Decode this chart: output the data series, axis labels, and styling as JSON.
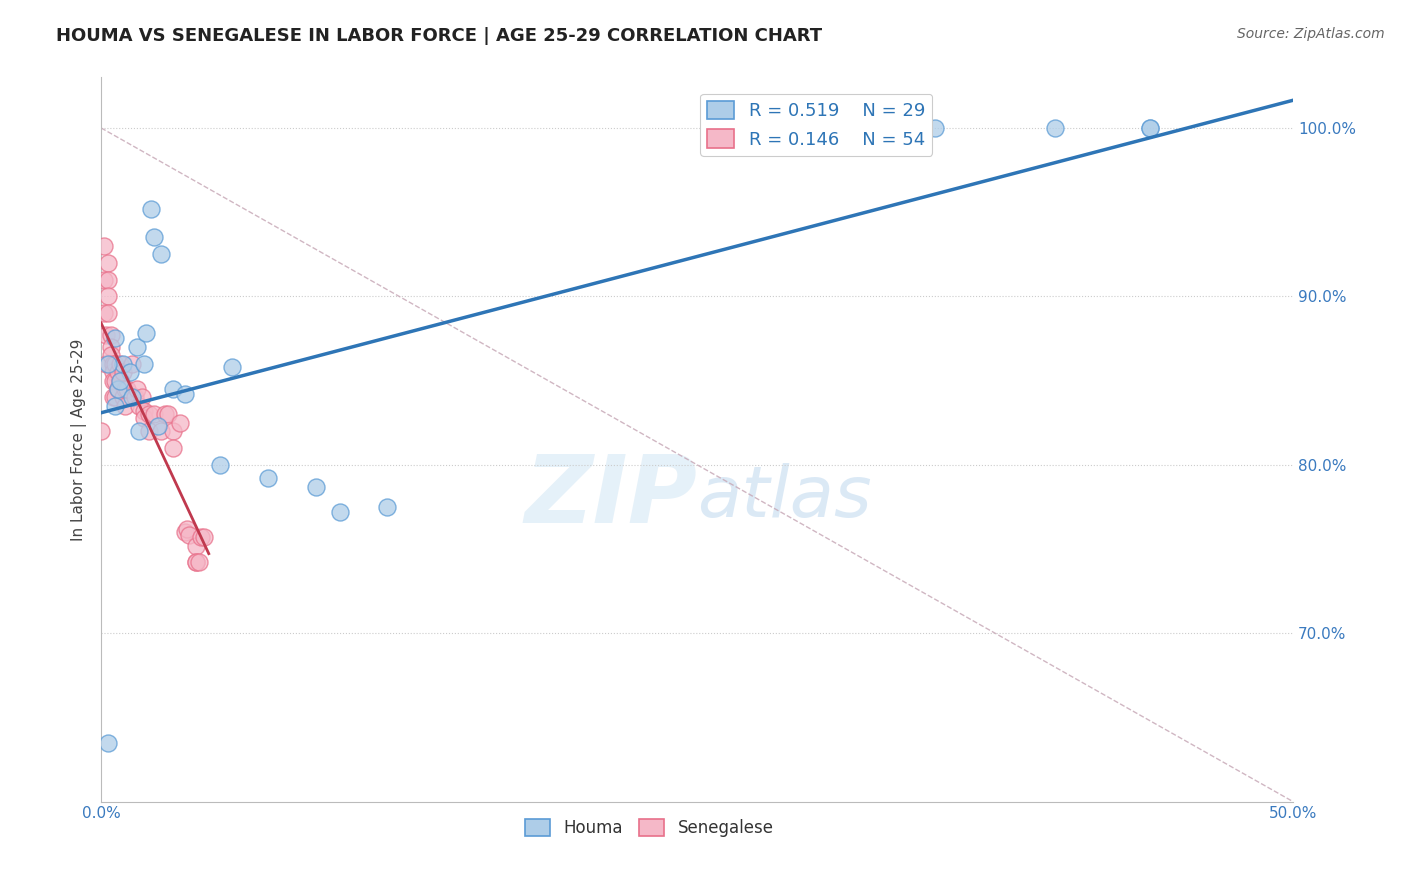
{
  "title": "HOUMA VS SENEGALESE IN LABOR FORCE | AGE 25-29 CORRELATION CHART",
  "source": "Source: ZipAtlas.com",
  "ylabel": "In Labor Force | Age 25-29",
  "xlim": [
    0.0,
    0.5
  ],
  "ylim": [
    0.6,
    1.03
  ],
  "xtick_labels": [
    "0.0%",
    "",
    "",
    "",
    "",
    "50.0%"
  ],
  "xtick_values": [
    0.0,
    0.1,
    0.2,
    0.3,
    0.4,
    0.5
  ],
  "ytick_labels": [
    "70.0%",
    "80.0%",
    "90.0%",
    "100.0%"
  ],
  "ytick_values": [
    0.7,
    0.8,
    0.9,
    1.0
  ],
  "legend_R_houma": "0.519",
  "legend_N_houma": "29",
  "legend_R_senegalese": "0.146",
  "legend_N_senegalese": "54",
  "houma_color": "#aecde8",
  "senegalese_color": "#f5b8c8",
  "houma_edge_color": "#5b9bd5",
  "senegalese_edge_color": "#e8708a",
  "houma_line_color": "#2e75b6",
  "senegalese_line_color": "#c0394e",
  "diagonal_color": "#c8aab8",
  "watermark_zip": "ZIP",
  "watermark_atlas": "atlas",
  "houma_scatter_x": [
    0.003,
    0.021,
    0.022,
    0.025,
    0.006,
    0.006,
    0.007,
    0.009,
    0.012,
    0.015,
    0.018,
    0.019,
    0.024,
    0.03,
    0.035,
    0.055,
    0.09,
    0.1,
    0.35,
    0.4,
    0.44,
    0.44,
    0.003,
    0.008,
    0.013,
    0.016,
    0.05,
    0.07,
    0.12
  ],
  "houma_scatter_y": [
    0.635,
    0.952,
    0.935,
    0.925,
    0.835,
    0.875,
    0.845,
    0.86,
    0.855,
    0.87,
    0.86,
    0.878,
    0.823,
    0.845,
    0.842,
    0.858,
    0.787,
    0.772,
    1.0,
    1.0,
    1.0,
    1.0,
    0.86,
    0.85,
    0.84,
    0.82,
    0.8,
    0.792,
    0.775
  ],
  "senegalese_scatter_x": [
    0.0,
    0.001,
    0.001,
    0.001,
    0.002,
    0.002,
    0.003,
    0.003,
    0.003,
    0.003,
    0.004,
    0.004,
    0.004,
    0.005,
    0.005,
    0.005,
    0.005,
    0.006,
    0.006,
    0.006,
    0.007,
    0.007,
    0.008,
    0.008,
    0.009,
    0.009,
    0.01,
    0.01,
    0.011,
    0.013,
    0.014,
    0.015,
    0.016,
    0.017,
    0.018,
    0.018,
    0.02,
    0.02,
    0.022,
    0.025,
    0.027,
    0.028,
    0.03,
    0.03,
    0.033,
    0.035,
    0.036,
    0.037,
    0.04,
    0.04,
    0.04,
    0.041,
    0.042,
    0.043
  ],
  "senegalese_scatter_y": [
    0.82,
    0.93,
    0.91,
    0.89,
    0.877,
    0.86,
    0.92,
    0.91,
    0.9,
    0.89,
    0.877,
    0.87,
    0.865,
    0.86,
    0.855,
    0.85,
    0.84,
    0.86,
    0.85,
    0.84,
    0.855,
    0.845,
    0.86,
    0.85,
    0.855,
    0.84,
    0.845,
    0.835,
    0.845,
    0.86,
    0.84,
    0.845,
    0.835,
    0.84,
    0.832,
    0.828,
    0.83,
    0.82,
    0.83,
    0.82,
    0.83,
    0.83,
    0.82,
    0.81,
    0.825,
    0.76,
    0.762,
    0.758,
    0.752,
    0.742,
    0.742,
    0.742,
    0.757,
    0.757
  ]
}
